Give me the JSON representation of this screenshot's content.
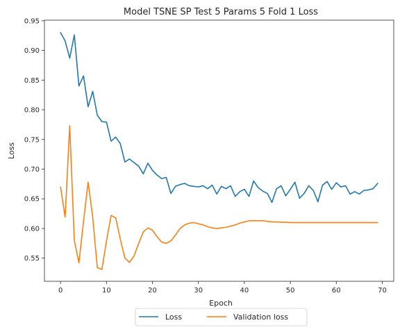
{
  "chart_data": {
    "type": "line",
    "title": "Model TSNE SP Test 5 Params 5 Fold 1 Loss",
    "xlabel": "Epoch",
    "ylabel": "Loss",
    "xlim": [
      -3.5,
      72.5
    ],
    "ylim": [
      0.511,
      0.951
    ],
    "xticks": [
      0,
      10,
      20,
      30,
      40,
      50,
      60,
      70
    ],
    "yticks": [
      0.55,
      0.6,
      0.65,
      0.7,
      0.75,
      0.8,
      0.85,
      0.9,
      0.95
    ],
    "grid": false,
    "legend_position": "below",
    "series": [
      {
        "name": "Loss",
        "color": "#1f77b4",
        "x": [
          0,
          1,
          2,
          3,
          4,
          5,
          6,
          7,
          8,
          9,
          10,
          11,
          12,
          13,
          14,
          15,
          16,
          17,
          18,
          19,
          20,
          21,
          22,
          23,
          24,
          25,
          26,
          27,
          28,
          29,
          30,
          31,
          32,
          33,
          34,
          35,
          36,
          37,
          38,
          39,
          40,
          41,
          42,
          43,
          44,
          45,
          46,
          47,
          48,
          49,
          50,
          51,
          52,
          53,
          54,
          55,
          56,
          57,
          58,
          59,
          60,
          61,
          62,
          63,
          64,
          65,
          66,
          67,
          68,
          69
        ],
        "values": [
          0.93,
          0.916,
          0.887,
          0.926,
          0.84,
          0.857,
          0.805,
          0.831,
          0.791,
          0.78,
          0.779,
          0.747,
          0.754,
          0.743,
          0.712,
          0.717,
          0.711,
          0.705,
          0.692,
          0.71,
          0.698,
          0.69,
          0.684,
          0.686,
          0.659,
          0.671,
          0.674,
          0.676,
          0.672,
          0.671,
          0.67,
          0.672,
          0.667,
          0.673,
          0.658,
          0.671,
          0.667,
          0.672,
          0.654,
          0.662,
          0.666,
          0.654,
          0.68,
          0.669,
          0.663,
          0.659,
          0.644,
          0.667,
          0.672,
          0.655,
          0.666,
          0.678,
          0.651,
          0.659,
          0.672,
          0.664,
          0.645,
          0.673,
          0.679,
          0.666,
          0.677,
          0.67,
          0.672,
          0.658,
          0.662,
          0.658,
          0.664,
          0.665,
          0.667,
          0.676
        ]
      },
      {
        "name": "Validation loss",
        "color": "#ff7f0e",
        "x": [
          0,
          1,
          2,
          3,
          4,
          5,
          6,
          7,
          8,
          9,
          10,
          11,
          12,
          13,
          14,
          15,
          16,
          17,
          18,
          19,
          20,
          21,
          22,
          23,
          24,
          25,
          26,
          27,
          28,
          29,
          30,
          31,
          32,
          33,
          34,
          35,
          36,
          37,
          38,
          39,
          40,
          41,
          42,
          43,
          44,
          45,
          46,
          47,
          48,
          49,
          50,
          51,
          52,
          53,
          54,
          55,
          56,
          57,
          58,
          59,
          60,
          61,
          62,
          63,
          64,
          65,
          66,
          67,
          68,
          69
        ],
        "values": [
          0.67,
          0.619,
          0.773,
          0.58,
          0.542,
          0.612,
          0.678,
          0.619,
          0.534,
          0.531,
          0.579,
          0.622,
          0.618,
          0.582,
          0.55,
          0.543,
          0.554,
          0.575,
          0.594,
          0.601,
          0.597,
          0.586,
          0.577,
          0.575,
          0.579,
          0.589,
          0.6,
          0.606,
          0.609,
          0.61,
          0.608,
          0.606,
          0.603,
          0.601,
          0.6,
          0.601,
          0.602,
          0.604,
          0.606,
          0.609,
          0.611,
          0.613,
          0.613,
          0.613,
          0.613,
          0.612,
          0.611,
          0.611,
          0.6105,
          0.6105,
          0.61,
          0.61,
          0.61,
          0.61,
          0.61,
          0.61,
          0.61,
          0.61,
          0.61,
          0.61,
          0.61,
          0.61,
          0.61,
          0.61,
          0.61,
          0.61,
          0.61,
          0.61,
          0.61,
          0.61
        ]
      }
    ]
  }
}
